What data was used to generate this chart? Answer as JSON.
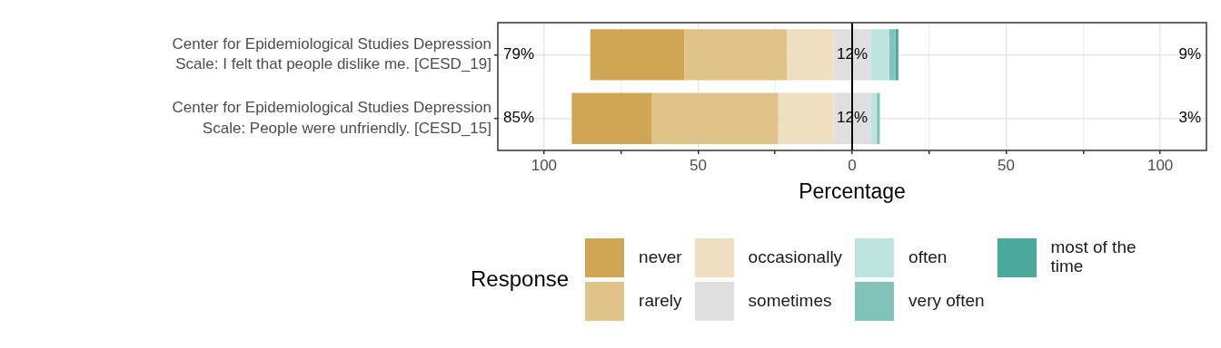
{
  "chart_data": {
    "type": "bar",
    "orientation": "horizontal",
    "xlabel": "Percentage",
    "legend_title": "Response",
    "legend": "bottom",
    "grid": true,
    "categories": [
      "Center for Epidemiological Studies Depression Scale: I felt that people dislike me. [CESD_19]",
      "Center for Epidemiological Studies Depression Scale: People were unfriendly. [CESD_15]"
    ],
    "series": [
      {
        "name": "never",
        "color": "#cfa654",
        "values": [
          30.5,
          26
        ],
        "base": [
          -85,
          -91
        ]
      },
      {
        "name": "rarely",
        "color": "#dfc388",
        "values": [
          33.3,
          41
        ],
        "base": [
          -54.5,
          -65
        ]
      },
      {
        "name": "occasionally",
        "color": "#eedfc0",
        "values": [
          15.2,
          18
        ],
        "base": [
          -21.2,
          -24
        ]
      },
      {
        "name": "sometimes",
        "color": "#dfdfdf",
        "values": [
          12,
          12
        ],
        "base": [
          -6,
          -6
        ]
      },
      {
        "name": "often",
        "color": "#bde3df",
        "values": [
          6,
          2
        ],
        "base": [
          6,
          6
        ]
      },
      {
        "name": "very often",
        "color": "#82c3b9",
        "values": [
          2,
          1
        ],
        "base": [
          12,
          8
        ]
      },
      {
        "name": "most of the time",
        "color": "#4ba89c",
        "values": [
          1,
          null
        ],
        "base": [
          14,
          null
        ]
      }
    ],
    "xlim": [
      -115,
      115
    ],
    "xticks": [
      {
        "value": -100,
        "label": "100"
      },
      {
        "value": -75,
        "label": null
      },
      {
        "value": -50,
        "label": "50"
      },
      {
        "value": -25,
        "label": null
      },
      0,
      {
        "value": 25,
        "label": null
      },
      50,
      {
        "value": 75,
        "label": null
      },
      100
    ],
    "ref_lines": [
      {
        "axis": "x",
        "value": 0,
        "color": "#000000"
      }
    ],
    "annotations": [
      "79%",
      "12%",
      "9%",
      "85%",
      "12%",
      "3%"
    ]
  }
}
